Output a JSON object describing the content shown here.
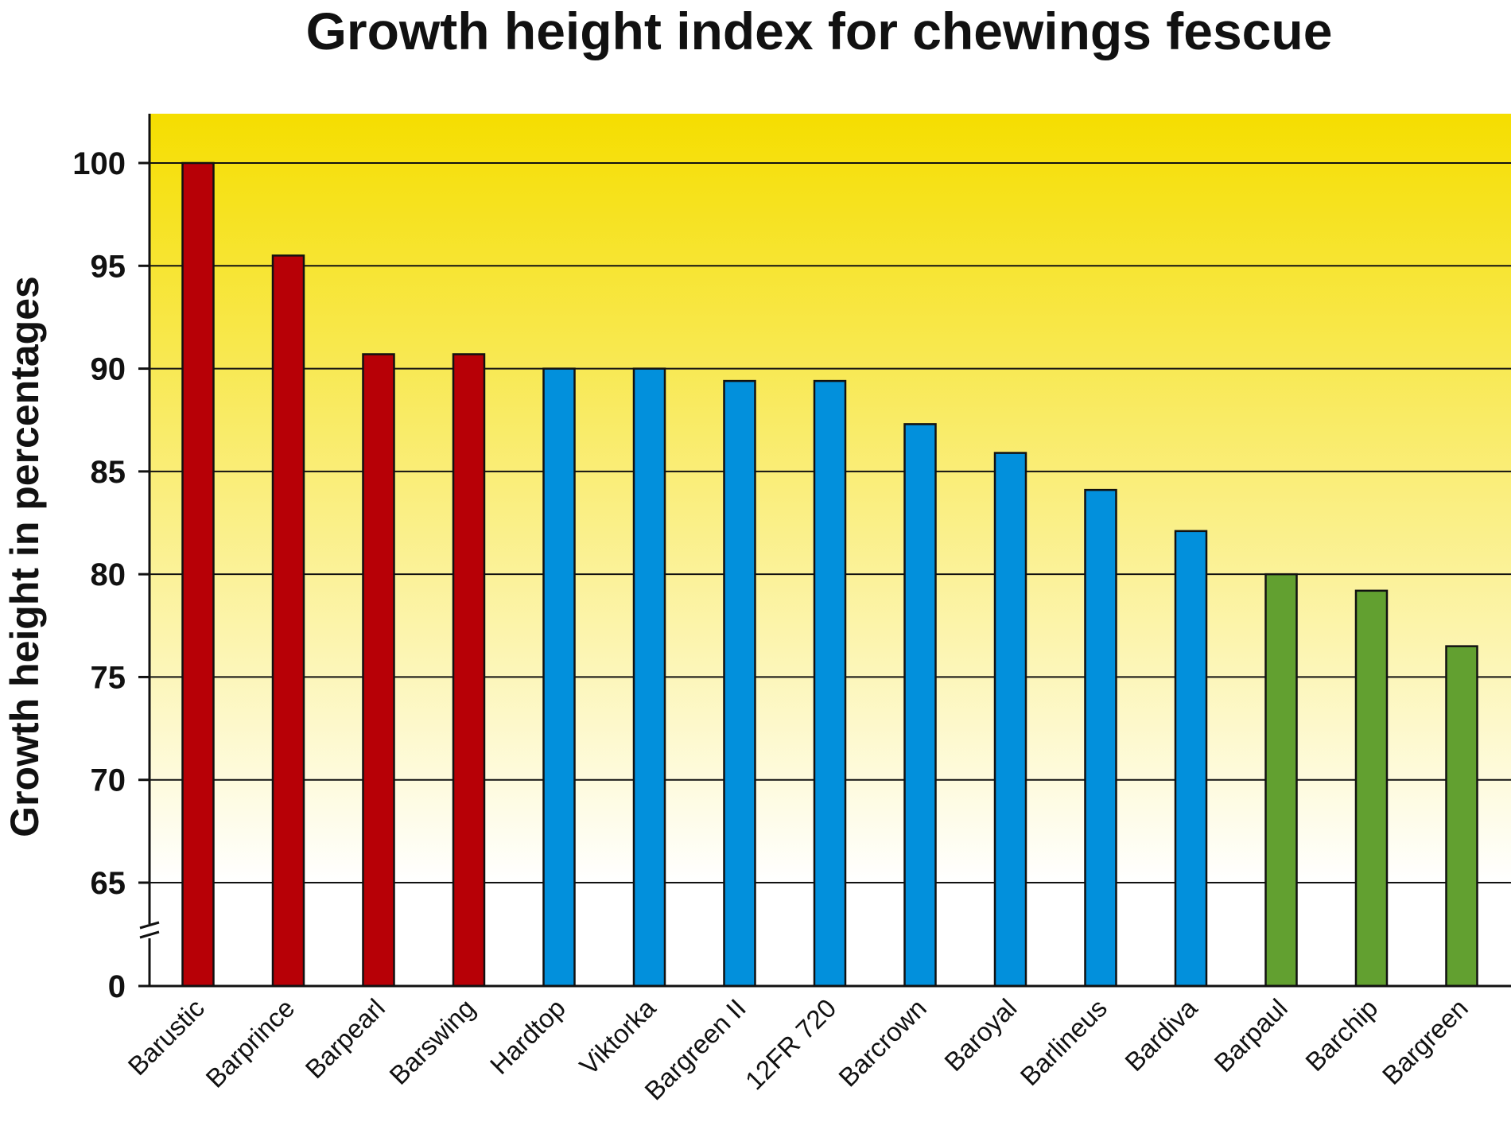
{
  "chart_data": {
    "type": "bar",
    "title": "Growth height index for chewings fescue",
    "ylabel": "Growth height in percentages",
    "xlabel": "",
    "categories": [
      "Barustic",
      "Barprince",
      "Barpearl",
      "Barswing",
      "Hardtop",
      "Viktorka",
      "Bargreen II",
      "12FR 720",
      "Barcrown",
      "Baroyal",
      "Barlineus",
      "Bardiva",
      "Barpaul",
      "Barchip",
      "Bargreen"
    ],
    "values": [
      100,
      95.5,
      90.7,
      90.7,
      90,
      90,
      89.4,
      89.4,
      87.3,
      85.9,
      84.1,
      82.1,
      80,
      79.2,
      76.5
    ],
    "bar_colors": [
      "#b70006",
      "#b70006",
      "#b70006",
      "#b70006",
      "#0290dc",
      "#0290dc",
      "#0290dc",
      "#0290dc",
      "#0290dc",
      "#0290dc",
      "#0290dc",
      "#0290dc",
      "#62a030",
      "#62a030",
      "#62a030"
    ],
    "yticks": [
      0,
      65,
      70,
      75,
      80,
      85,
      90,
      95,
      100
    ],
    "ylim": [
      0,
      102.5
    ],
    "axis_break": [
      0,
      65
    ],
    "grid": true,
    "background_gradient": [
      "#ffffff",
      "#f5de00"
    ]
  }
}
